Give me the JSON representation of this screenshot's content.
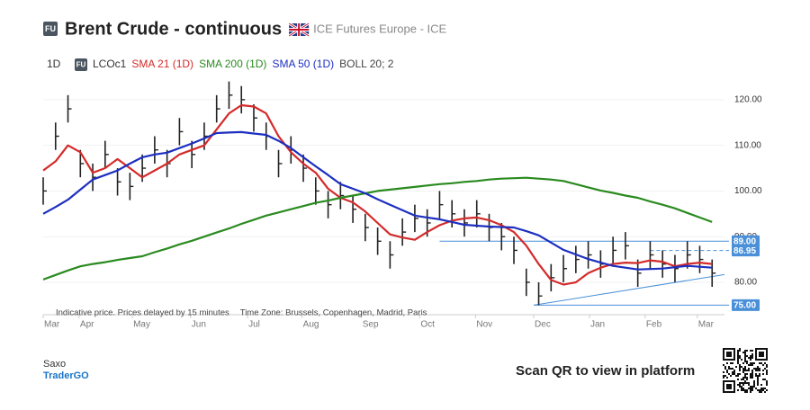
{
  "header": {
    "badge": "FU",
    "title": "Brent Crude - continuous",
    "exchange": "ICE Futures Europe - ICE",
    "interval": "1D"
  },
  "chart_data": {
    "type": "ohlc",
    "x": [
      0,
      1,
      2,
      3,
      4,
      5,
      6,
      7,
      8,
      9,
      10,
      11,
      12,
      13,
      14,
      15,
      16,
      17,
      18,
      19,
      20,
      21,
      22,
      23,
      24,
      25,
      26,
      27,
      28,
      29,
      30,
      31,
      32,
      33,
      34,
      35,
      36,
      37,
      38,
      39,
      40,
      41,
      42,
      43,
      44,
      45,
      46,
      47,
      48,
      49,
      50,
      51,
      52,
      53,
      54
    ],
    "xlim": [
      0,
      55
    ],
    "xticks": [
      {
        "value": 0,
        "label": "Mar"
      },
      {
        "value": 2.9,
        "label": "Apr"
      },
      {
        "value": 7.2,
        "label": "May"
      },
      {
        "value": 11.9,
        "label": "Jun"
      },
      {
        "value": 16.5,
        "label": "Jul"
      },
      {
        "value": 20.9,
        "label": "Aug"
      },
      {
        "value": 25.7,
        "label": "Sep"
      },
      {
        "value": 30.4,
        "label": "Oct"
      },
      {
        "value": 34.9,
        "label": "Nov"
      },
      {
        "value": 39.6,
        "label": "Dec"
      },
      {
        "value": 44.1,
        "label": "Jan"
      },
      {
        "value": 48.6,
        "label": "Feb"
      },
      {
        "value": 52.8,
        "label": "Mar"
      }
    ],
    "ylim": [
      72.9,
      125.1
    ],
    "yticks": [
      {
        "value": 80,
        "label": "80.00"
      },
      {
        "value": 90,
        "label": "90.00"
      },
      {
        "value": 100,
        "label": "100.00"
      },
      {
        "value": 110,
        "label": "110.00"
      },
      {
        "value": 120,
        "label": "120.00"
      }
    ],
    "series": [
      {
        "name": "LCOc1",
        "color": "#222222",
        "values": [
          100,
          112,
          118,
          106,
          103,
          108,
          102,
          101,
          105,
          109,
          106,
          113,
          108,
          112,
          118,
          121,
          120,
          116,
          112,
          106,
          109,
          105,
          100,
          97,
          99,
          96,
          92,
          89,
          86,
          91,
          94,
          93,
          97,
          95,
          93,
          95,
          92,
          90,
          87,
          80,
          77,
          81,
          83,
          85,
          86,
          84,
          87,
          88,
          82,
          86,
          84,
          83,
          86,
          85,
          82
        ],
        "high": [
          103,
          115,
          121,
          109,
          106,
          111,
          105,
          104,
          108,
          112,
          109,
          116,
          111,
          115,
          121,
          124,
          123,
          119,
          115,
          109,
          112,
          108,
          103,
          100,
          102,
          99,
          95,
          92,
          89,
          94,
          97,
          96,
          100,
          98,
          96,
          98,
          95,
          93,
          90,
          83,
          80,
          84,
          86,
          88,
          89,
          87,
          90,
          91,
          85,
          89,
          87,
          86,
          89,
          88,
          85
        ],
        "low": [
          97,
          109,
          115,
          103,
          100,
          105,
          99,
          98,
          102,
          106,
          103,
          110,
          105,
          109,
          115,
          118,
          117,
          113,
          109,
          103,
          106,
          102,
          97,
          94,
          96,
          93,
          89,
          86,
          83,
          88,
          91,
          90,
          94,
          92,
          90,
          92,
          89,
          87,
          84,
          77,
          75,
          78,
          80,
          82,
          83,
          81,
          84,
          85,
          79,
          83,
          81,
          80,
          83,
          82,
          79
        ]
      },
      {
        "name": "SMA 21 (1D)",
        "color": "#d42a2a",
        "values": [
          104.5,
          106.5,
          110,
          108.5,
          104,
          105,
          107,
          105,
          103,
          104.5,
          106,
          108,
          109,
          110,
          113.5,
          117,
          118.8,
          118.5,
          117,
          112,
          108.5,
          106,
          104,
          100.5,
          98.5,
          97.5,
          95.5,
          93,
          90.5,
          89.8,
          89.3,
          91,
          92.5,
          93.5,
          94,
          94.2,
          93.6,
          92.5,
          91,
          88,
          84,
          80.5,
          79.5,
          80,
          82,
          83.2,
          84,
          84.3,
          84.2,
          84.8,
          84.5,
          83.5,
          84,
          84.3,
          84
        ]
      },
      {
        "name": "SMA 200 (1D)",
        "color": "#2a8a1f",
        "values": [
          80.6,
          81.6,
          82.6,
          83.5,
          84,
          84.4,
          84.9,
          85.3,
          85.7,
          86.6,
          87.4,
          88.3,
          89.1,
          90,
          90.9,
          91.8,
          92.8,
          93.7,
          94.6,
          95.3,
          96,
          96.7,
          97.4,
          97.9,
          98.5,
          99,
          99.5,
          100,
          100.3,
          100.6,
          100.9,
          101.2,
          101.5,
          101.7,
          102,
          102.2,
          102.5,
          102.7,
          102.8,
          102.9,
          102.7,
          102.5,
          102.2,
          101.5,
          100.8,
          100.1,
          99.6,
          99,
          98.5,
          97.7,
          97,
          96.2,
          95.2,
          94.2,
          93.2
        ]
      },
      {
        "name": "SMA 50 (1D)",
        "color": "#1c2fc0",
        "values": [
          95,
          96.5,
          98.1,
          100.3,
          102.5,
          103.5,
          104.5,
          106,
          107.4,
          108,
          108.4,
          109.4,
          110.4,
          111.5,
          112.7,
          112.8,
          112.9,
          112.6,
          112.3,
          111,
          109.4,
          107.4,
          105.4,
          103.5,
          101.5,
          100.5,
          99.5,
          98.2,
          97,
          95.8,
          94.6,
          94.2,
          93.8,
          93.2,
          92.6,
          92.4,
          92.2,
          92.1,
          92,
          91.2,
          90.3,
          88.7,
          87.1,
          86.1,
          85.1,
          84.3,
          83.6,
          83.2,
          82.8,
          82.9,
          83,
          83.3,
          83.6,
          83.4,
          83.2
        ]
      }
    ],
    "indicators": [
      "BOLL 20; 2"
    ],
    "levels": [
      {
        "value": 89,
        "label": "89.00",
        "from": 32,
        "style": "solid"
      },
      {
        "value": 86.95,
        "label": "86.95",
        "from": 49,
        "style": "dashed"
      },
      {
        "value": 75,
        "label": "75.00",
        "from": 39.6,
        "style": "solid"
      }
    ],
    "trendline": {
      "x": [
        39.6,
        55
      ],
      "y": [
        75,
        81.7
      ]
    },
    "note": "Indicative price. Prices delayed by 15 minutes",
    "timezone": "Time Zone: Brussels, Copenhagen, Madrid, Paris"
  },
  "footer": {
    "brand": "Saxo",
    "product": "TraderGO",
    "cta": "Scan QR to view in platform"
  }
}
